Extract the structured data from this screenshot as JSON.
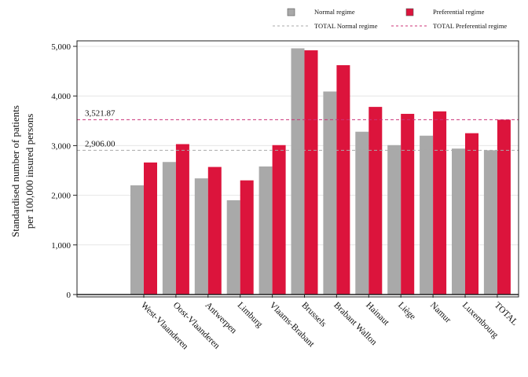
{
  "chart_data": {
    "type": "bar",
    "title": "",
    "ylabel_lines": [
      "Standardised number of patients",
      "per 100,000 insured persons"
    ],
    "xlabel": "",
    "ylim": [
      0,
      5000
    ],
    "yticks": [
      0,
      1000,
      2000,
      3000,
      4000,
      5000
    ],
    "ytick_labels": [
      "0",
      "1,000",
      "2,000",
      "3,000",
      "4,000",
      "5,000"
    ],
    "grid": true,
    "legend_position": "top-right",
    "categories": [
      "West-Vlaanderen",
      "Oost-Vlaanderen",
      "Antwerpen",
      "Limburg",
      "Vlaams-Brabant",
      "Brussels",
      "Brabant Wallon",
      "Hainaut",
      "Liège",
      "Namur",
      "Luxembourg",
      "TOTAL"
    ],
    "series": [
      {
        "name": "Normal regime",
        "color": "#a9a9a9",
        "values": [
          2200,
          2670,
          2340,
          1900,
          2580,
          4960,
          4090,
          3280,
          3010,
          3200,
          2940,
          2906
        ]
      },
      {
        "name": "Preferential regime",
        "color": "#dc143c",
        "values": [
          2660,
          3030,
          2570,
          2300,
          3010,
          4920,
          4620,
          3780,
          3640,
          3690,
          3250,
          3522
        ]
      }
    ],
    "reference_lines": [
      {
        "name": "TOTAL Normal regime",
        "value": 2906,
        "label": "2,906.00",
        "color": "#a9a9a9"
      },
      {
        "name": "TOTAL Preferential regime",
        "value": 3521.87,
        "label": "3,521.87",
        "color": "#cc3377"
      }
    ]
  }
}
